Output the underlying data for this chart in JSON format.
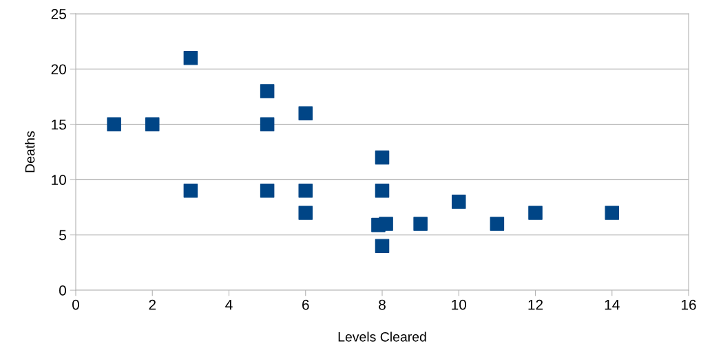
{
  "chart_data": {
    "type": "scatter",
    "xlabel": "Levels Cleared",
    "ylabel": "Deaths",
    "x": [
      1,
      2,
      3,
      3,
      5,
      5,
      5,
      6,
      6,
      6,
      8,
      8,
      7.9,
      8.1,
      8,
      9,
      10,
      11,
      12,
      14
    ],
    "series": [
      {
        "color": "#004586",
        "values": [
          15,
          15,
          21,
          9,
          18,
          15,
          9,
          16,
          9,
          7,
          12,
          9,
          5.9,
          6,
          4,
          6,
          8,
          6,
          7,
          7
        ]
      }
    ],
    "marker": "square",
    "xlim": [
      0,
      16
    ],
    "xticks": [
      0,
      2,
      4,
      6,
      8,
      10,
      12,
      14,
      16
    ],
    "ylim": [
      0,
      25
    ],
    "yticks": [
      0,
      5,
      10,
      15,
      20,
      25
    ],
    "grid": "y",
    "legend": false
  }
}
